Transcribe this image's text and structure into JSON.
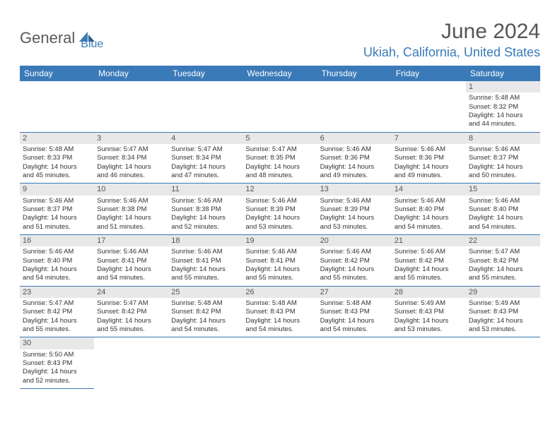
{
  "logo": {
    "part1": "General",
    "part2": "Blue"
  },
  "title": "June 2024",
  "location": "Ukiah, California, United States",
  "day_headers": [
    "Sunday",
    "Monday",
    "Tuesday",
    "Wednesday",
    "Thursday",
    "Friday",
    "Saturday"
  ],
  "colors": {
    "header_bg": "#3a7ab8",
    "day_num_bg": "#e8e8e8",
    "border": "#3a7ab8",
    "text": "#333333",
    "location": "#3a7ab8"
  },
  "weeks": [
    [
      null,
      null,
      null,
      null,
      null,
      null,
      {
        "n": "1",
        "sunrise": "Sunrise: 5:48 AM",
        "sunset": "Sunset: 8:32 PM",
        "d1": "Daylight: 14 hours",
        "d2": "and 44 minutes."
      }
    ],
    [
      {
        "n": "2",
        "sunrise": "Sunrise: 5:48 AM",
        "sunset": "Sunset: 8:33 PM",
        "d1": "Daylight: 14 hours",
        "d2": "and 45 minutes."
      },
      {
        "n": "3",
        "sunrise": "Sunrise: 5:47 AM",
        "sunset": "Sunset: 8:34 PM",
        "d1": "Daylight: 14 hours",
        "d2": "and 46 minutes."
      },
      {
        "n": "4",
        "sunrise": "Sunrise: 5:47 AM",
        "sunset": "Sunset: 8:34 PM",
        "d1": "Daylight: 14 hours",
        "d2": "and 47 minutes."
      },
      {
        "n": "5",
        "sunrise": "Sunrise: 5:47 AM",
        "sunset": "Sunset: 8:35 PM",
        "d1": "Daylight: 14 hours",
        "d2": "and 48 minutes."
      },
      {
        "n": "6",
        "sunrise": "Sunrise: 5:46 AM",
        "sunset": "Sunset: 8:36 PM",
        "d1": "Daylight: 14 hours",
        "d2": "and 49 minutes."
      },
      {
        "n": "7",
        "sunrise": "Sunrise: 5:46 AM",
        "sunset": "Sunset: 8:36 PM",
        "d1": "Daylight: 14 hours",
        "d2": "and 49 minutes."
      },
      {
        "n": "8",
        "sunrise": "Sunrise: 5:46 AM",
        "sunset": "Sunset: 8:37 PM",
        "d1": "Daylight: 14 hours",
        "d2": "and 50 minutes."
      }
    ],
    [
      {
        "n": "9",
        "sunrise": "Sunrise: 5:46 AM",
        "sunset": "Sunset: 8:37 PM",
        "d1": "Daylight: 14 hours",
        "d2": "and 51 minutes."
      },
      {
        "n": "10",
        "sunrise": "Sunrise: 5:46 AM",
        "sunset": "Sunset: 8:38 PM",
        "d1": "Daylight: 14 hours",
        "d2": "and 51 minutes."
      },
      {
        "n": "11",
        "sunrise": "Sunrise: 5:46 AM",
        "sunset": "Sunset: 8:38 PM",
        "d1": "Daylight: 14 hours",
        "d2": "and 52 minutes."
      },
      {
        "n": "12",
        "sunrise": "Sunrise: 5:46 AM",
        "sunset": "Sunset: 8:39 PM",
        "d1": "Daylight: 14 hours",
        "d2": "and 53 minutes."
      },
      {
        "n": "13",
        "sunrise": "Sunrise: 5:46 AM",
        "sunset": "Sunset: 8:39 PM",
        "d1": "Daylight: 14 hours",
        "d2": "and 53 minutes."
      },
      {
        "n": "14",
        "sunrise": "Sunrise: 5:46 AM",
        "sunset": "Sunset: 8:40 PM",
        "d1": "Daylight: 14 hours",
        "d2": "and 54 minutes."
      },
      {
        "n": "15",
        "sunrise": "Sunrise: 5:46 AM",
        "sunset": "Sunset: 8:40 PM",
        "d1": "Daylight: 14 hours",
        "d2": "and 54 minutes."
      }
    ],
    [
      {
        "n": "16",
        "sunrise": "Sunrise: 5:46 AM",
        "sunset": "Sunset: 8:40 PM",
        "d1": "Daylight: 14 hours",
        "d2": "and 54 minutes."
      },
      {
        "n": "17",
        "sunrise": "Sunrise: 5:46 AM",
        "sunset": "Sunset: 8:41 PM",
        "d1": "Daylight: 14 hours",
        "d2": "and 54 minutes."
      },
      {
        "n": "18",
        "sunrise": "Sunrise: 5:46 AM",
        "sunset": "Sunset: 8:41 PM",
        "d1": "Daylight: 14 hours",
        "d2": "and 55 minutes."
      },
      {
        "n": "19",
        "sunrise": "Sunrise: 5:46 AM",
        "sunset": "Sunset: 8:41 PM",
        "d1": "Daylight: 14 hours",
        "d2": "and 55 minutes."
      },
      {
        "n": "20",
        "sunrise": "Sunrise: 5:46 AM",
        "sunset": "Sunset: 8:42 PM",
        "d1": "Daylight: 14 hours",
        "d2": "and 55 minutes."
      },
      {
        "n": "21",
        "sunrise": "Sunrise: 5:46 AM",
        "sunset": "Sunset: 8:42 PM",
        "d1": "Daylight: 14 hours",
        "d2": "and 55 minutes."
      },
      {
        "n": "22",
        "sunrise": "Sunrise: 5:47 AM",
        "sunset": "Sunset: 8:42 PM",
        "d1": "Daylight: 14 hours",
        "d2": "and 55 minutes."
      }
    ],
    [
      {
        "n": "23",
        "sunrise": "Sunrise: 5:47 AM",
        "sunset": "Sunset: 8:42 PM",
        "d1": "Daylight: 14 hours",
        "d2": "and 55 minutes."
      },
      {
        "n": "24",
        "sunrise": "Sunrise: 5:47 AM",
        "sunset": "Sunset: 8:42 PM",
        "d1": "Daylight: 14 hours",
        "d2": "and 55 minutes."
      },
      {
        "n": "25",
        "sunrise": "Sunrise: 5:48 AM",
        "sunset": "Sunset: 8:42 PM",
        "d1": "Daylight: 14 hours",
        "d2": "and 54 minutes."
      },
      {
        "n": "26",
        "sunrise": "Sunrise: 5:48 AM",
        "sunset": "Sunset: 8:43 PM",
        "d1": "Daylight: 14 hours",
        "d2": "and 54 minutes."
      },
      {
        "n": "27",
        "sunrise": "Sunrise: 5:48 AM",
        "sunset": "Sunset: 8:43 PM",
        "d1": "Daylight: 14 hours",
        "d2": "and 54 minutes."
      },
      {
        "n": "28",
        "sunrise": "Sunrise: 5:49 AM",
        "sunset": "Sunset: 8:43 PM",
        "d1": "Daylight: 14 hours",
        "d2": "and 53 minutes."
      },
      {
        "n": "29",
        "sunrise": "Sunrise: 5:49 AM",
        "sunset": "Sunset: 8:43 PM",
        "d1": "Daylight: 14 hours",
        "d2": "and 53 minutes."
      }
    ],
    [
      {
        "n": "30",
        "sunrise": "Sunrise: 5:50 AM",
        "sunset": "Sunset: 8:43 PM",
        "d1": "Daylight: 14 hours",
        "d2": "and 52 minutes."
      },
      null,
      null,
      null,
      null,
      null,
      null
    ]
  ]
}
